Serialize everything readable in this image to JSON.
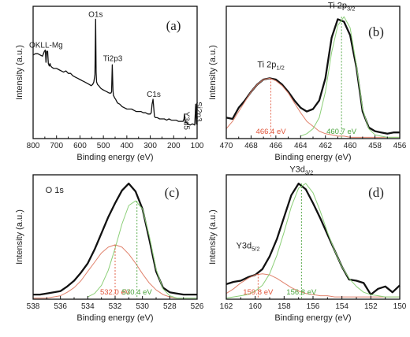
{
  "colors": {
    "data": "#111111",
    "peak_fit_a": "#e0826c",
    "peak_fit_b": "#8ccf78",
    "label_red": "#e0553a",
    "label_green": "#4aa33c"
  },
  "chart_data": [
    {
      "id": "a",
      "type": "line",
      "panel_label": "(a)",
      "title": "",
      "xlabel": "Binding energy (eV)",
      "ylabel": "Intensity (a.u.)",
      "xlim": [
        800,
        100
      ],
      "ylim": [
        0,
        100
      ],
      "x_reversed": true,
      "xticks": [
        800,
        700,
        600,
        500,
        400,
        300,
        200,
        100
      ],
      "series": [
        {
          "x": [
            800,
            790,
            780,
            770,
            760,
            752,
            748,
            745,
            742,
            738,
            735,
            731,
            728,
            725,
            720,
            712,
            700,
            690,
            680,
            670,
            660,
            650,
            640,
            630,
            620,
            610,
            600,
            590,
            580,
            570,
            560,
            552,
            546,
            541,
            536,
            533,
            531,
            529,
            527,
            525,
            520,
            512,
            505,
            495,
            485,
            475,
            468,
            465,
            462,
            459,
            457,
            454,
            452,
            448,
            440,
            430,
            420,
            410,
            400,
            390,
            380,
            370,
            360,
            350,
            340,
            330,
            320,
            310,
            300,
            296,
            292,
            288,
            285,
            282,
            278,
            270,
            260,
            250,
            240,
            230,
            220,
            210,
            200,
            190,
            180,
            170,
            160,
            156,
            154,
            150,
            145,
            140,
            130,
            120,
            110,
            106,
            103,
            101,
            100
          ],
          "y": [
            68,
            69,
            69,
            68,
            67,
            71,
            72,
            62,
            71,
            71,
            61,
            59,
            61,
            59,
            58,
            57,
            57,
            56,
            55,
            54,
            55,
            53,
            53,
            51,
            50,
            49,
            48,
            47,
            46,
            45,
            44,
            43,
            44,
            46,
            52,
            97,
            54,
            46,
            45,
            44,
            43,
            41,
            40,
            39,
            38,
            37,
            37,
            38,
            60,
            39,
            35,
            34,
            33,
            32,
            29,
            28,
            26,
            25,
            24,
            24,
            24,
            23,
            22,
            22,
            22,
            21,
            21,
            20,
            20,
            21,
            28,
            32,
            25,
            18,
            17,
            17,
            16,
            16,
            16,
            15,
            16,
            15,
            15,
            15,
            14,
            14,
            14,
            16,
            20,
            13,
            13,
            12,
            11,
            12,
            11,
            28,
            12,
            27,
            11
          ]
        }
      ],
      "annotations": [
        {
          "text": "OKLL-Mg",
          "x": 745,
          "y": 74
        },
        {
          "text": "O1s",
          "x": 533,
          "y": 99
        },
        {
          "text": "Ti2p3",
          "x": 460,
          "y": 63
        },
        {
          "text": "C1s",
          "x": 285,
          "y": 34
        },
        {
          "text": "Y3d5",
          "x": 156,
          "y": 22,
          "rotated": true
        },
        {
          "text": "Si2p3",
          "x": 104,
          "y": 30,
          "rotated": true
        }
      ]
    },
    {
      "id": "b",
      "type": "line",
      "panel_label": "(b)",
      "title": "",
      "xlabel": "Binding energy (eV)",
      "ylabel": "Intensity (a.u.)",
      "xlim": [
        470,
        456
      ],
      "ylim": [
        0,
        100
      ],
      "x_reversed": true,
      "xticks": [
        470,
        468,
        466,
        464,
        462,
        460,
        458,
        456
      ],
      "series": [
        {
          "name": "",
          "role": "data",
          "x": [
            470,
            469.5,
            469,
            468.5,
            468,
            467.5,
            467,
            466.5,
            466,
            465.5,
            465,
            464.5,
            464,
            463.5,
            463,
            462.5,
            462,
            461.5,
            461,
            460.5,
            460,
            459.5,
            459,
            458.5,
            458,
            457.5,
            457,
            456.5,
            456
          ],
          "y": [
            17,
            16,
            25,
            31,
            38,
            44,
            48,
            49,
            48,
            44,
            38,
            31,
            25,
            22,
            24,
            31,
            49,
            82,
            97,
            95,
            84,
            58,
            22,
            9,
            6,
            5,
            4,
            5,
            5
          ]
        },
        {
          "name": "",
          "role": "fit",
          "color_key": "peak_fit_a",
          "x": [
            470,
            469.5,
            469,
            468.5,
            468,
            467.5,
            467,
            466.5,
            466,
            465.5,
            465,
            464.5,
            464,
            463.5,
            463,
            462.5,
            462,
            461.5,
            461,
            460.5,
            460,
            459.5,
            459,
            458.5,
            458,
            457.5,
            457,
            456.5,
            456
          ],
          "y": [
            8,
            14,
            22,
            30,
            38,
            44,
            48,
            49,
            47,
            43,
            37,
            29,
            21,
            14,
            10,
            6,
            4,
            3,
            2,
            2,
            1,
            1,
            1,
            1,
            1,
            1,
            1,
            1,
            1
          ]
        },
        {
          "name": "",
          "role": "fit",
          "color_key": "peak_fit_b",
          "x": [
            464,
            463.5,
            463,
            462.5,
            462,
            461.5,
            461,
            460.5,
            460,
            459.5,
            459,
            458.5,
            458,
            457.5,
            457,
            456.5,
            456
          ],
          "y": [
            2,
            4,
            8,
            17,
            38,
            70,
            92,
            99,
            90,
            60,
            24,
            8,
            3,
            2,
            1,
            1,
            1
          ]
        }
      ],
      "peak_markers": [
        {
          "x": 466.4,
          "y_top": 49,
          "label": "466.4 eV",
          "color_key": "label_red"
        },
        {
          "x": 460.7,
          "y_top": 99,
          "label": "460.7 eV",
          "color_key": "label_green"
        }
      ],
      "peak_names": [
        {
          "base": "Ti 2p",
          "sub": "1/2",
          "x": 466.4,
          "y": 58
        },
        {
          "base": "Ti 2p",
          "sub": "3/2",
          "x": 460.7,
          "y": 106
        }
      ]
    },
    {
      "id": "c",
      "type": "line",
      "panel_label": "(c)",
      "title": "",
      "xlabel": "Binding energy (eV)",
      "ylabel": "Intensity (a.u.)",
      "xlim": [
        538,
        526
      ],
      "ylim": [
        0,
        100
      ],
      "x_reversed": true,
      "xticks": [
        538,
        536,
        534,
        532,
        530,
        528,
        526
      ],
      "series": [
        {
          "name": "",
          "role": "data",
          "x": [
            538,
            537.5,
            537,
            536.5,
            536,
            535.5,
            535,
            534.5,
            534,
            533.5,
            533,
            532.5,
            532,
            531.5,
            531,
            530.5,
            530,
            529.5,
            529,
            528.5,
            528,
            527.5,
            527,
            526.5,
            526
          ],
          "y": [
            4,
            4,
            5,
            6,
            7,
            11,
            16,
            23,
            31,
            43,
            57,
            71,
            83,
            94,
            100,
            93,
            78,
            52,
            24,
            10,
            6,
            5,
            4,
            4,
            4
          ]
        },
        {
          "name": "",
          "role": "fit",
          "color_key": "peak_fit_a",
          "x": [
            538,
            537.5,
            537,
            536.5,
            536,
            535.5,
            535,
            534.5,
            534,
            533.5,
            533,
            532.5,
            532,
            531.5,
            531,
            530.5,
            530,
            529.5,
            529,
            528.5,
            528,
            527.5,
            527,
            526.5,
            526
          ],
          "y": [
            1,
            1,
            1,
            2,
            3,
            6,
            10,
            16,
            24,
            32,
            40,
            45,
            47,
            45,
            39,
            31,
            22,
            14,
            8,
            4,
            2,
            1,
            1,
            1,
            1
          ]
        },
        {
          "name": "",
          "role": "fit",
          "color_key": "peak_fit_b",
          "x": [
            534,
            533.5,
            533,
            532.5,
            532,
            531.5,
            531,
            530.5,
            530,
            529.5,
            529,
            528.5,
            528,
            527.5,
            527,
            526.5,
            526
          ],
          "y": [
            2,
            5,
            12,
            25,
            44,
            65,
            81,
            85,
            78,
            55,
            26,
            9,
            3,
            1,
            1,
            1,
            1
          ]
        }
      ],
      "peak_markers": [
        {
          "x": 532.0,
          "y_top": 47,
          "label": "532.0 eV",
          "color_key": "label_red"
        },
        {
          "x": 530.4,
          "y_top": 85,
          "label": "530.4 eV",
          "color_key": "label_green"
        }
      ],
      "peak_names": [
        {
          "base": "O 1s",
          "sub": "",
          "x": 537.1,
          "y": 92
        }
      ]
    },
    {
      "id": "d",
      "type": "line",
      "panel_label": "(d)",
      "title": "",
      "xlabel": "Binding energy (eV)",
      "ylabel": "Intensity (a.u.)",
      "xlim": [
        162,
        150
      ],
      "ylim": [
        0,
        100
      ],
      "x_reversed": true,
      "xticks": [
        162,
        160,
        158,
        156,
        154,
        152,
        150
      ],
      "series": [
        {
          "name": "",
          "role": "data",
          "x": [
            162,
            161.5,
            161,
            160.5,
            160,
            159.5,
            159,
            158.5,
            158,
            157.5,
            157,
            156.5,
            156,
            155.5,
            155,
            154.5,
            154,
            153.5,
            153,
            152.5,
            152,
            151.5,
            151,
            150.5,
            150
          ],
          "y": [
            13,
            15,
            16,
            19,
            21,
            26,
            37,
            52,
            71,
            90,
            100,
            95,
            83,
            70,
            56,
            42,
            28,
            17,
            16,
            14,
            4,
            9,
            11,
            6,
            12
          ]
        },
        {
          "name": "",
          "role": "fit",
          "color_key": "peak_fit_a",
          "x": [
            162,
            161.5,
            161,
            160.5,
            160,
            159.5,
            159,
            158.5,
            158,
            157.5,
            157,
            156.5,
            156,
            155.5,
            155,
            154.5,
            154,
            153.5,
            153,
            152.5,
            152,
            151.5,
            151,
            150.5,
            150
          ],
          "y": [
            5,
            9,
            14,
            18,
            21,
            22,
            21,
            18,
            14,
            10,
            7,
            5,
            4,
            3,
            3,
            2,
            2,
            2,
            2,
            2,
            2,
            2,
            2,
            2,
            2
          ]
        },
        {
          "name": "",
          "role": "fit",
          "color_key": "peak_fit_b",
          "x": [
            162,
            161.5,
            161,
            160.5,
            160,
            159.5,
            159,
            158.5,
            158,
            157.5,
            157,
            156.5,
            156,
            155.5,
            155,
            154.5,
            154,
            153.5,
            153,
            152.5,
            152,
            151.5,
            151,
            150.5,
            150
          ],
          "y": [
            1,
            2,
            3,
            4,
            7,
            12,
            22,
            38,
            58,
            80,
            96,
            100,
            92,
            76,
            58,
            42,
            28,
            18,
            11,
            6,
            4,
            3,
            2,
            2,
            2
          ]
        }
      ],
      "peak_markers": [
        {
          "x": 159.8,
          "y_top": 22,
          "label": "159.8 eV",
          "color_key": "label_red"
        },
        {
          "x": 156.8,
          "y_top": 100,
          "label": "156.8 eV",
          "color_key": "label_green"
        }
      ],
      "peak_names": [
        {
          "base": "Y3d",
          "sub": "5/2",
          "x": 160.5,
          "y": 44
        },
        {
          "base": "Y3d",
          "sub": "3/2",
          "x": 156.8,
          "y": 110
        }
      ]
    }
  ]
}
